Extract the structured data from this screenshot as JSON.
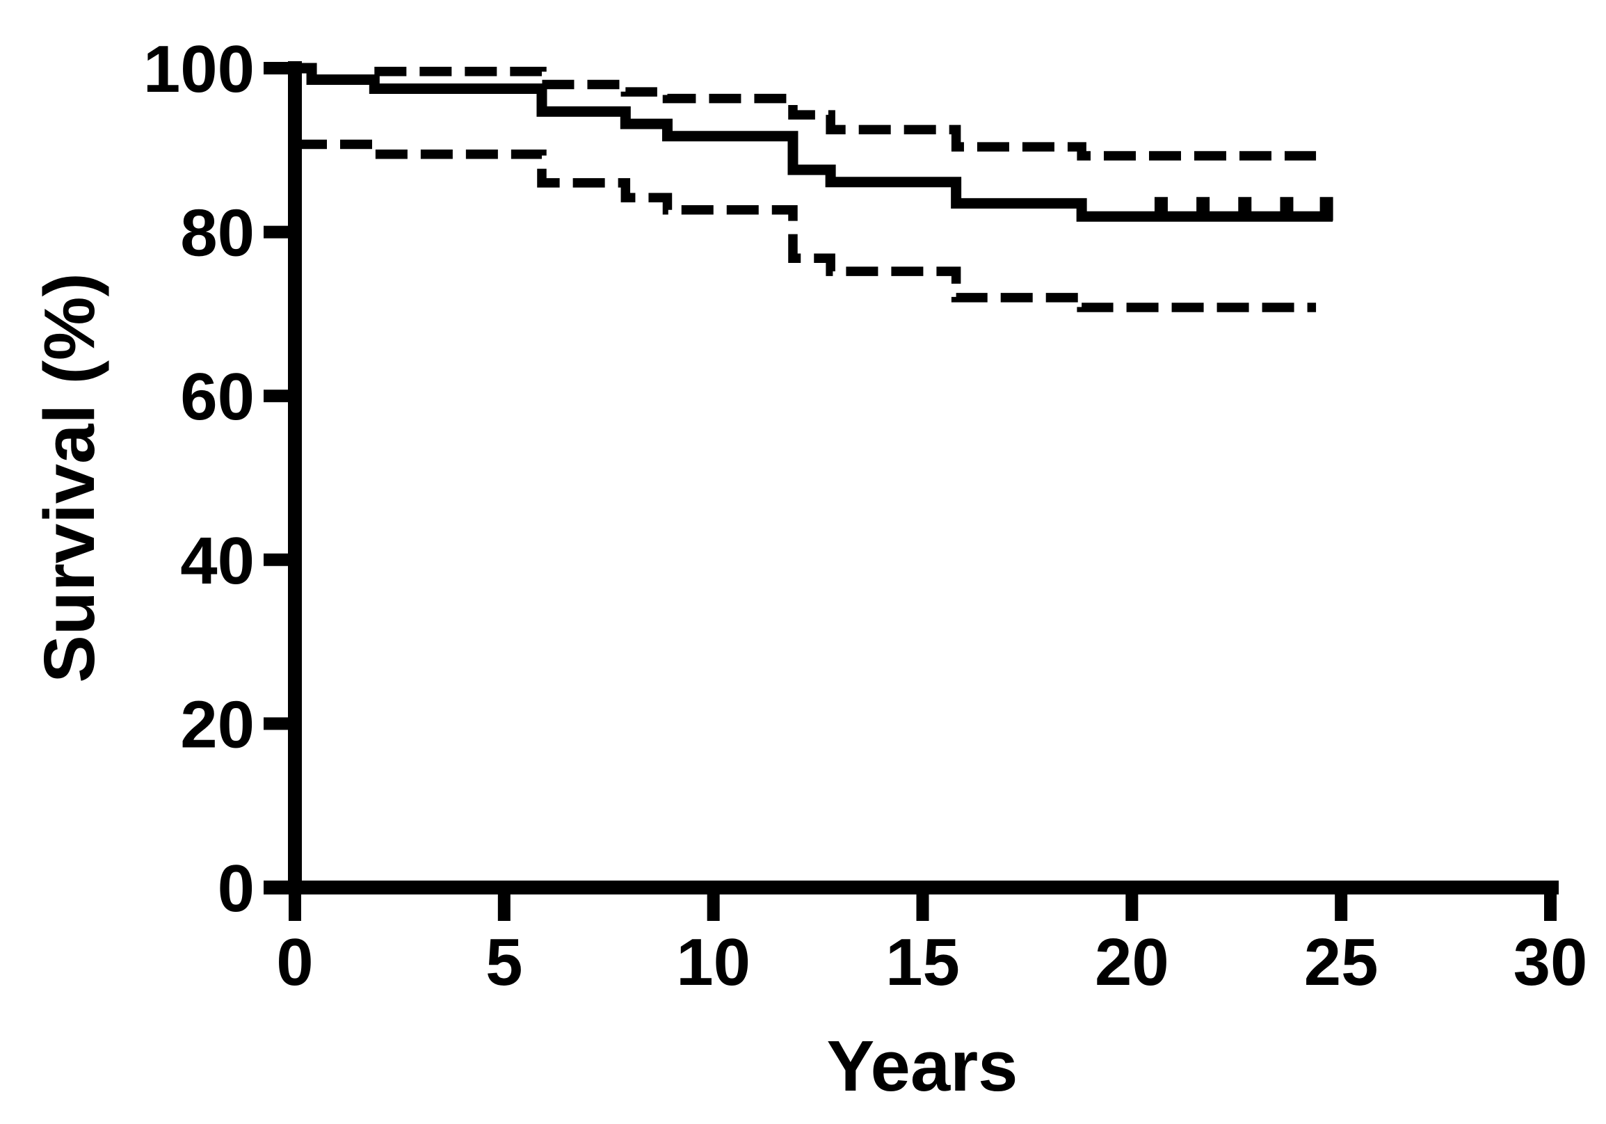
{
  "figure": {
    "background_color": "#ffffff",
    "line_color": "#000000"
  },
  "chart_data": {
    "type": "line",
    "subtype": "kaplan-meier-step",
    "title": "",
    "xlabel": "Years",
    "ylabel": "Survival (%)",
    "xlim": [
      0,
      30
    ],
    "ylim": [
      0,
      100
    ],
    "xticks": [
      0,
      5,
      10,
      15,
      20,
      25,
      30
    ],
    "yticks": [
      0,
      20,
      40,
      60,
      80,
      100
    ],
    "grid": false,
    "legend": "none",
    "series": [
      {
        "name": "survival",
        "style": "solid",
        "points": [
          [
            0,
            100
          ],
          [
            0.4,
            98.6
          ],
          [
            1.9,
            97.5
          ],
          [
            5.9,
            94.7
          ],
          [
            7.9,
            93.2
          ],
          [
            8.9,
            91.7
          ],
          [
            11.9,
            87.6
          ],
          [
            12.8,
            86.1
          ],
          [
            15.8,
            83.5
          ],
          [
            18.8,
            81.9
          ]
        ],
        "end_x": 24.8
      },
      {
        "name": "upper-95ci",
        "style": "dashed",
        "points": [
          [
            1.9,
            99.6
          ],
          [
            5.9,
            98.0
          ],
          [
            7.9,
            97.1
          ],
          [
            8.9,
            96.3
          ],
          [
            11.9,
            94.3
          ],
          [
            12.8,
            92.5
          ],
          [
            15.8,
            90.4
          ],
          [
            18.8,
            89.3
          ]
        ],
        "end_x": 24.4
      },
      {
        "name": "lower-95ci",
        "style": "dashed",
        "points": [
          [
            0,
            90.7
          ],
          [
            1.9,
            89.5
          ],
          [
            5.9,
            86.0
          ],
          [
            7.9,
            84.2
          ],
          [
            8.9,
            82.7
          ],
          [
            11.9,
            76.8
          ],
          [
            12.8,
            75.2
          ],
          [
            15.8,
            72.0
          ],
          [
            18.8,
            70.8
          ]
        ],
        "end_x": 24.4
      }
    ],
    "censor_tick_times": [
      20.7,
      21.7,
      22.7,
      23.7,
      24.65
    ],
    "censor_tick_value": 81.9
  }
}
